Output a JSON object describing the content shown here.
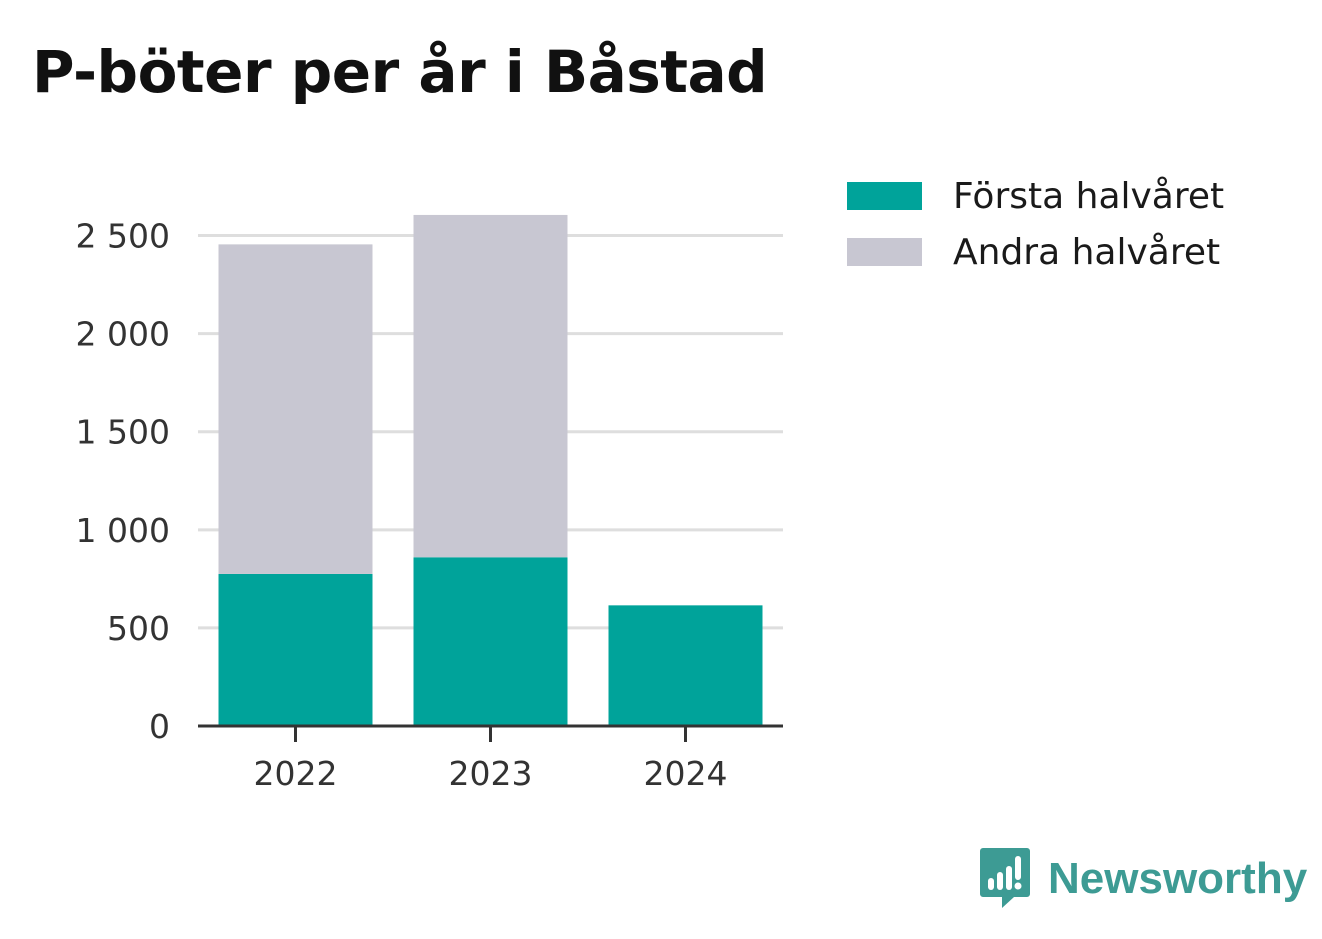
{
  "chart_data": {
    "type": "bar",
    "stacked": true,
    "title": "P-böter per år i Båstad",
    "categories": [
      "2022",
      "2023",
      "2024"
    ],
    "series": [
      {
        "name": "Första halvåret",
        "values": [
          775,
          860,
          615
        ],
        "color": "#00a39a"
      },
      {
        "name": "Andra halvåret",
        "values": [
          1680,
          1745,
          0
        ],
        "color": "#c8c7d2"
      }
    ],
    "xlabel": "",
    "ylabel": "",
    "ylim": [
      0,
      2620
    ],
    "yticks": [
      0,
      500,
      1000,
      1500,
      2000,
      2500
    ],
    "ytick_labels": [
      "0",
      "500",
      "1 000",
      "1 500",
      "2 000",
      "2 500"
    ],
    "grid": true,
    "legend_position": "top-right"
  },
  "brand": {
    "name": "Newsworthy",
    "icon": "newsworthy-logo-icon",
    "color": "#3d9b94"
  }
}
